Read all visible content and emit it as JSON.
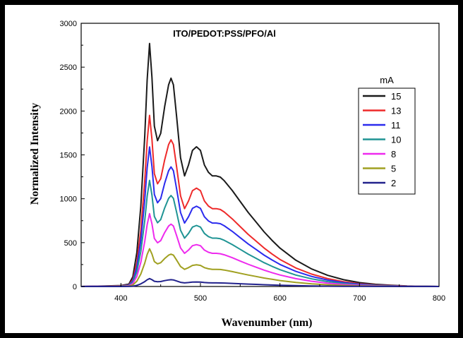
{
  "chart_data": {
    "type": "line",
    "title": "ITO/PEDOT:PSS/PFO/Al",
    "xlabel": "Wavenumber (nm)",
    "ylabel": "Normalized Intensity",
    "xlim": [
      350,
      800
    ],
    "ylim": [
      0,
      3000
    ],
    "xticks": [
      400,
      500,
      600,
      700,
      800
    ],
    "yticks": [
      0,
      500,
      1000,
      1500,
      2000,
      2500,
      3000
    ],
    "grid": false,
    "legend_title": "mA",
    "legend_position": "right",
    "shape": {
      "x": [
        350,
        380,
        400,
        410,
        415,
        420,
        425,
        430,
        433,
        436,
        439,
        442,
        446,
        450,
        455,
        460,
        463,
        466,
        470,
        475,
        480,
        485,
        490,
        495,
        500,
        505,
        510,
        515,
        520,
        525,
        530,
        540,
        550,
        560,
        570,
        580,
        590,
        600,
        620,
        640,
        660,
        680,
        700,
        720,
        740,
        760,
        780,
        800
      ],
      "y": [
        0,
        0.002,
        0.004,
        0.01,
        0.04,
        0.14,
        0.33,
        0.62,
        0.85,
        1.0,
        0.86,
        0.66,
        0.6,
        0.63,
        0.74,
        0.83,
        0.857,
        0.83,
        0.7,
        0.53,
        0.455,
        0.5,
        0.56,
        0.575,
        0.56,
        0.5,
        0.47,
        0.455,
        0.455,
        0.45,
        0.435,
        0.395,
        0.35,
        0.305,
        0.265,
        0.225,
        0.19,
        0.158,
        0.108,
        0.072,
        0.046,
        0.028,
        0.016,
        0.009,
        0.005,
        0.002,
        0.001,
        0
      ]
    },
    "series": [
      {
        "name": "15",
        "color": "#1a1a1a",
        "peak": 2770
      },
      {
        "name": "13",
        "color": "#ee2a2a",
        "peak": 1950
      },
      {
        "name": "11",
        "color": "#2b2bee",
        "peak": 1590
      },
      {
        "name": "10",
        "color": "#1f9494",
        "peak": 1210
      },
      {
        "name": "8",
        "color": "#ee2aee",
        "peak": 830
      },
      {
        "name": "5",
        "color": "#a0a020",
        "peak": 430
      },
      {
        "name": "2",
        "color": "#22228c",
        "peak": 90
      }
    ]
  }
}
